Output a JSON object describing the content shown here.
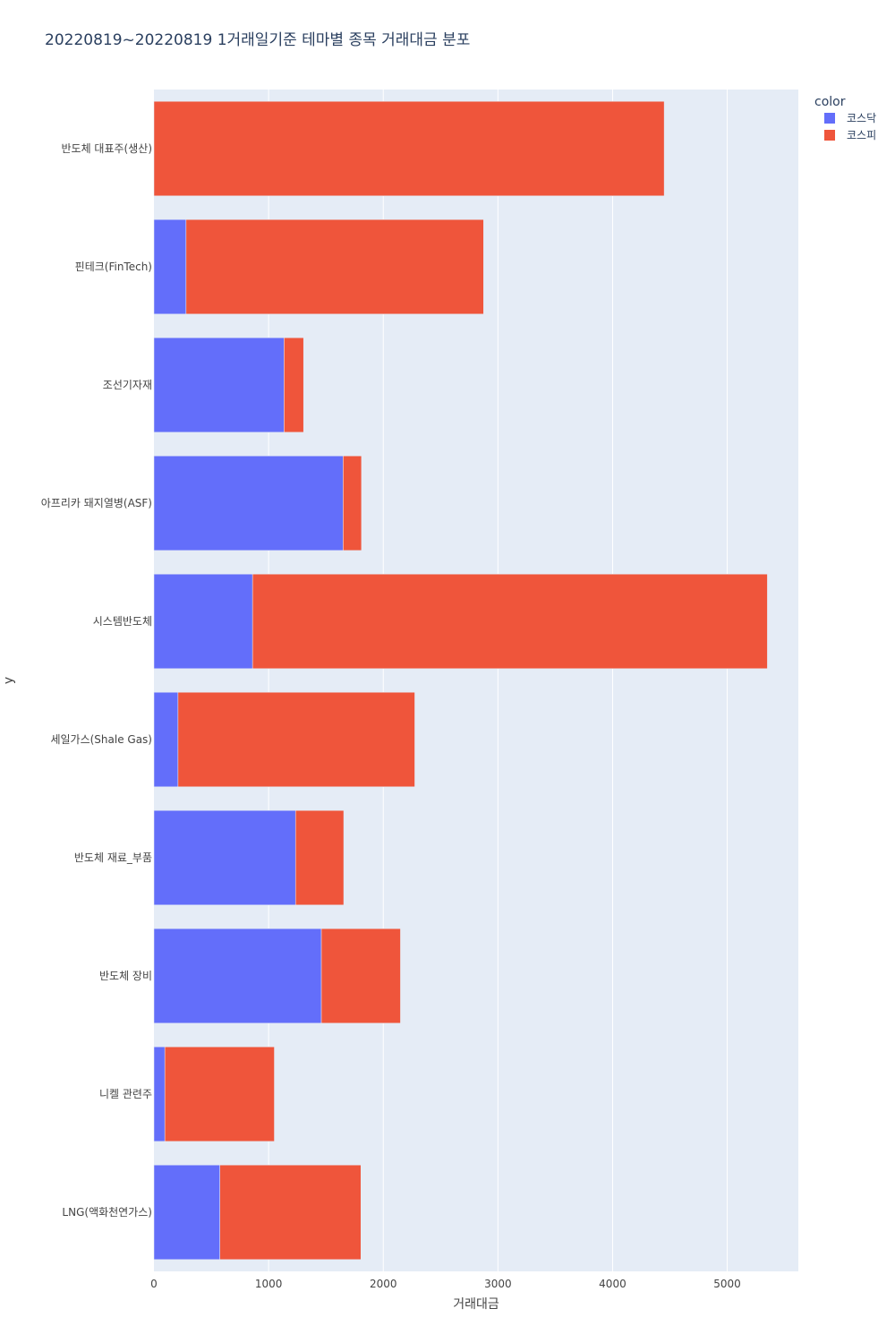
{
  "chart_data": {
    "type": "bar",
    "orientation": "horizontal",
    "barmode": "stack",
    "title": "20220819~20220819 1거래일기준 테마별 종목 거래대금 분포",
    "xlabel": "거래대금",
    "ylabel": "y",
    "xlim": [
      0,
      5620
    ],
    "xticks": [
      0,
      1000,
      2000,
      3000,
      4000,
      5000
    ],
    "grid": true,
    "legend_title": "color",
    "legend_position": "top-right",
    "categories": [
      "반도체 대표주(생산)",
      "핀테크(FinTech)",
      "조선기자재",
      "아프리카 돼지열병(ASF)",
      "시스템반도체",
      "세일가스(Shale Gas)",
      "반도체 재료_부품",
      "반도체 장비",
      "니켈 관련주",
      "LNG(액화천연가스)"
    ],
    "series": [
      {
        "name": "코스닥",
        "color": "#636efa",
        "values": [
          0,
          280,
          1135,
          1650,
          860,
          210,
          1235,
          1460,
          95,
          575
        ]
      },
      {
        "name": "코스피",
        "color": "#ef553b",
        "values": [
          4450,
          2595,
          170,
          160,
          4490,
          2065,
          420,
          690,
          955,
          1230
        ]
      }
    ]
  }
}
